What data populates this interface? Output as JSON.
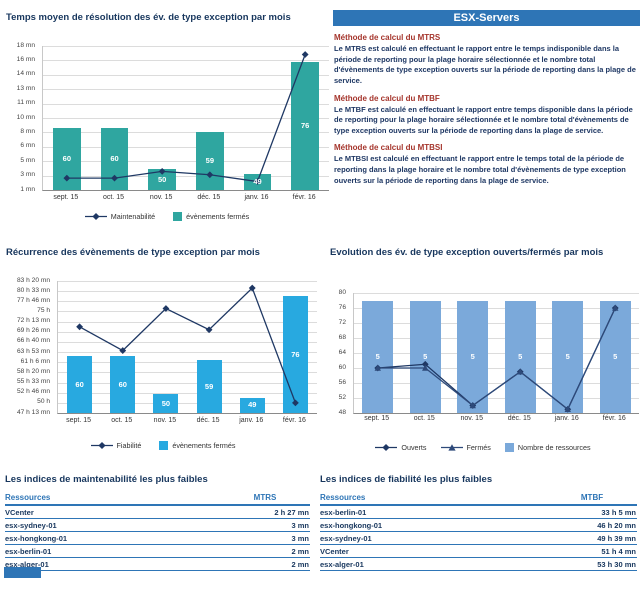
{
  "panel": {
    "title": "ESX-Servers",
    "sections": [
      {
        "heading": "Méthode de calcul du MTRS",
        "body": "Le MTRS est calculé en effectuant le rapport entre le temps indisponible dans la période de reporting pour la plage horaire sélectionnée  et le nombre total d'évènements de type exception ouverts sur la période de reporting dans la plage de service."
      },
      {
        "heading": "Méthode de calcul du MTBF",
        "body": "Le MTBF est calculé en effectuant le rapport entre temps disponible dans la période de reporting pour la plage horaire sélectionnée et le nombre total d'évènements de type exception ouverts sur la période de reporting dans la plage de service."
      },
      {
        "heading": "Méthode de calcul du MTBSI",
        "body": "Le MTBSI est calculé en effectuant le rapport entre le temps total de la période de reporting dans la plage horaire et le nombre total d'évènements de type exception ouverts sur la période de reporting dans la plage de service."
      }
    ]
  },
  "chart_data": [
    {
      "type": "bar+line",
      "title": "Temps moyen de résolution des év. de type exception par mois",
      "categories": [
        "sept. 15",
        "oct. 15",
        "nov. 15",
        "déc. 15",
        "janv. 16",
        "févr. 16"
      ],
      "y_ticks": [
        "18 mn",
        "16 mn",
        "14 mn",
        "13 mn",
        "11 mn",
        "10 mn",
        "8 mn",
        "6 mn",
        "5 mn",
        "3 mn",
        "1 mn"
      ],
      "y_min": 1,
      "y_max": 18,
      "grid": true,
      "legend_position": "bottom",
      "bars": {
        "name": "évènements fermés",
        "values": [
          60,
          60,
          50,
          59,
          49,
          76
        ],
        "color": "#2FA6A0",
        "axis_min": 45,
        "axis_max": 80,
        "hidden_axis": true,
        "width_ratio": 0.58
      },
      "lines": [
        {
          "name": "Maintenabilité",
          "values": [
            2.4,
            2.4,
            3.2,
            2.8,
            2.0,
            17.0
          ],
          "color": "#1F3864",
          "marker": "diamond"
        }
      ]
    },
    {
      "type": "bar+line",
      "title": "Récurrence des évènements de type exception par mois",
      "categories": [
        "sept. 15",
        "oct. 15",
        "nov. 15",
        "déc. 15",
        "janv. 16",
        "févr. 16"
      ],
      "y_ticks": [
        "83 h 20 mn",
        "80 h 33 mn",
        "77 h 46 mn",
        "75 h",
        "72 h 13 mn",
        "69 h 26 mn",
        "66 h 40 mn",
        "63 h 53 mn",
        "61 h 6 mn",
        "58 h 20 mn",
        "55 h 33 mn",
        "52 h 46 mn",
        "50 h",
        "47 h 13 mn"
      ],
      "y_min": 47.22,
      "y_max": 83.33,
      "grid": true,
      "legend_position": "bottom",
      "bars": {
        "name": "évènements fermés",
        "values": [
          60,
          60,
          50,
          59,
          49,
          76
        ],
        "color": "#28A9E0",
        "axis_min": 45,
        "axis_max": 80,
        "hidden_axis": true,
        "width_ratio": 0.58
      },
      "lines": [
        {
          "name": "Fiabilité",
          "values": [
            70.8,
            64.3,
            75.8,
            70.0,
            81.4,
            50.0
          ],
          "color": "#1F3864",
          "marker": "diamond"
        }
      ]
    },
    {
      "type": "bar+line",
      "title": "Evolution des év. de type exception ouverts/fermés par mois",
      "categories": [
        "sept. 15",
        "oct. 15",
        "nov. 15",
        "déc. 15",
        "janv. 16",
        "févr. 16"
      ],
      "y_ticks": [
        "80",
        "76",
        "72",
        "68",
        "64",
        "60",
        "56",
        "52",
        "48"
      ],
      "y_min": 48,
      "y_max": 80,
      "grid": true,
      "legend_position": "bottom",
      "bars": {
        "name": "Nombre de ressources",
        "values": [
          5,
          5,
          5,
          5,
          5,
          5
        ],
        "color": "#7BA9DA",
        "axis_min": 0,
        "axis_max": 5.35,
        "hidden_axis": true,
        "width_ratio": 0.66
      },
      "lines": [
        {
          "name": "Ouverts",
          "values": [
            60,
            61,
            50,
            59,
            49,
            76
          ],
          "color": "#1F3864",
          "marker": "diamond"
        },
        {
          "name": "Fermés",
          "values": [
            60,
            60,
            50,
            59,
            49,
            76
          ],
          "color": "#2E4A7A",
          "marker": "triangle"
        }
      ]
    }
  ],
  "tables": [
    {
      "title": "Les indices de maintenabilité les plus faibles",
      "columns": [
        "Ressources",
        "MTRS"
      ],
      "rows": [
        [
          "VCenter",
          "2 h 27 mn"
        ],
        [
          "esx-sydney-01",
          "3 mn"
        ],
        [
          "esx-hongkong-01",
          "3 mn"
        ],
        [
          "esx-berlin-01",
          "2 mn"
        ],
        [
          "esx-alger-01",
          "2 mn"
        ]
      ]
    },
    {
      "title": "Les indices de fiabilité les plus faibles",
      "columns": [
        "Ressources",
        "MTBF"
      ],
      "rows": [
        [
          "esx-berlin-01",
          "33 h 5 mn"
        ],
        [
          "esx-hongkong-01",
          "46 h 20 mn"
        ],
        [
          "esx-sydney-01",
          "49 h 39 mn"
        ],
        [
          "VCenter",
          "51 h 4 mn"
        ],
        [
          "esx-alger-01",
          "53 h 30 mn"
        ]
      ]
    }
  ],
  "colors": {
    "accent_blue": "#2E75B6",
    "teal_bar": "#2FA6A0",
    "sky_blue_bar": "#28A9E0",
    "light_blue_bar": "#7BA9DA",
    "navy_line": "#1F3864",
    "red_heading": "#A5352C",
    "title_navy": "#17365D"
  }
}
